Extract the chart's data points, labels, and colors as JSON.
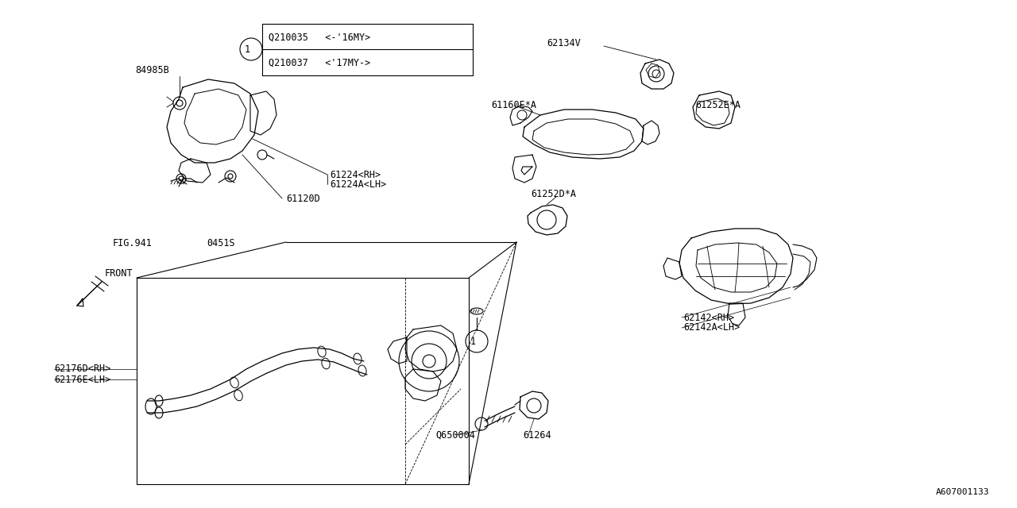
{
  "bg_color": "#ffffff",
  "line_color": "#000000",
  "fig_width": 12.8,
  "fig_height": 6.4,
  "dpi": 100,
  "diagram_id": "A607001133",
  "ref_table": {
    "row1": "Q210035   <-’16MY>",
    "row2": "Q210037   <’17MY->"
  }
}
